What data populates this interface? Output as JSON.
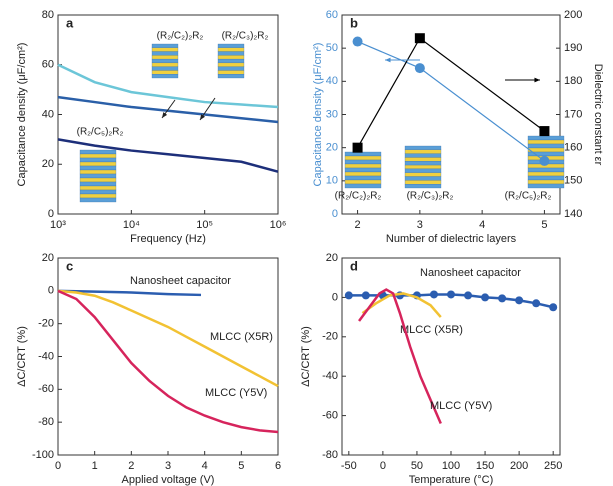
{
  "chart_data": [
    {
      "type": "line",
      "panel_label": "a",
      "xlabel": "Frequency (Hz)",
      "ylabel": "Capacitance density (μF/cm²)",
      "log_x": true,
      "xlim": [
        1000,
        1000000
      ],
      "xticks": [
        {
          "value": 1000,
          "label": "10³"
        },
        {
          "value": 10000,
          "label": "10⁴"
        },
        {
          "value": 100000,
          "label": "10⁵"
        },
        {
          "value": 1000000,
          "label": "10⁶"
        }
      ],
      "ylim": [
        0,
        80
      ],
      "yticks": [
        0,
        20,
        40,
        60,
        80
      ],
      "x": [
        1000,
        3162,
        10000,
        31623,
        100000,
        316228,
        1000000
      ],
      "series": [
        {
          "color": "#6cc6d8",
          "values": [
            60,
            53,
            49,
            47,
            45,
            44,
            43
          ]
        },
        {
          "color": "#2a5fa8",
          "values": [
            47,
            45,
            43,
            41.5,
            40,
            38.5,
            37
          ]
        },
        {
          "color": "#1d2f7a",
          "values": [
            30,
            27.5,
            25.5,
            24,
            22.5,
            21,
            17
          ]
        }
      ],
      "annotations": [
        "(R₂/C₂)₂R₂",
        "(R₂/C₃)₂R₂",
        "(R₂/C₅)₂R₂"
      ]
    },
    {
      "type": "line",
      "panel_label": "b",
      "xlabel": "Number of dielectric layers",
      "ylabel": "Capacitance density (μF/cm²)",
      "y2label": "Dielectric constant εr",
      "xlim": [
        1.75,
        5.25
      ],
      "xticks": [
        2,
        3,
        4,
        5
      ],
      "ylim": [
        0,
        60
      ],
      "yticks": [
        0,
        10,
        20,
        30,
        40,
        50,
        60
      ],
      "y2lim": [
        140,
        200
      ],
      "y2ticks": [
        140,
        150,
        160,
        170,
        180,
        190,
        200
      ],
      "x": [
        2,
        3,
        5
      ],
      "series": [
        {
          "color": "#4a8fd0",
          "marker": "circle",
          "values": [
            52,
            44,
            16
          ]
        },
        {
          "color": "#000000",
          "marker": "square",
          "axis": "y2",
          "values": [
            160,
            193,
            165
          ]
        }
      ],
      "annotations": [
        "(R₂/C₂)₂R₂",
        "(R₂/C₃)₂R₂",
        "(R₂/C₅)₂R₂"
      ]
    },
    {
      "type": "line",
      "panel_label": "c",
      "xlabel": "Applied voltage (V)",
      "ylabel": "ΔC/CRT (%)",
      "xlim": [
        0,
        6
      ],
      "xticks": [
        0,
        1,
        2,
        3,
        4,
        5,
        6
      ],
      "ylim": [
        -100,
        20
      ],
      "yticks": [
        -100,
        -80,
        -60,
        -40,
        -20,
        0,
        20
      ],
      "series": [
        {
          "name": "Nanosheet capacitor",
          "color": "#2b5db0",
          "x": [
            0,
            1,
            2,
            3,
            3.9
          ],
          "values": [
            0,
            -0.5,
            -1,
            -2,
            -2.5
          ]
        },
        {
          "name": "MLCC (X5R)",
          "color": "#f2c233",
          "x": [
            0,
            0.5,
            1,
            1.5,
            2,
            2.5,
            3,
            3.5,
            4,
            4.5,
            5,
            5.5,
            6
          ],
          "values": [
            0,
            -1,
            -3,
            -7,
            -12,
            -17,
            -22,
            -28,
            -34,
            -40,
            -46,
            -52,
            -58
          ]
        },
        {
          "name": "MLCC (Y5V)",
          "color": "#d6245c",
          "x": [
            0,
            0.5,
            1,
            1.5,
            2,
            2.5,
            3,
            3.5,
            4,
            4.5,
            5,
            5.5,
            6
          ],
          "values": [
            0,
            -5,
            -16,
            -30,
            -44,
            -55,
            -64,
            -71,
            -76,
            -80,
            -83,
            -85,
            -86
          ]
        }
      ]
    },
    {
      "type": "line",
      "panel_label": "d",
      "xlabel": "Temperature (°C)",
      "ylabel": "ΔC/CRT (%)",
      "xlim": [
        -60,
        260
      ],
      "xticks": [
        -50,
        0,
        50,
        100,
        150,
        200,
        250
      ],
      "ylim": [
        -80,
        20
      ],
      "yticks": [
        -80,
        -60,
        -40,
        -20,
        0,
        20
      ],
      "series": [
        {
          "name": "Nanosheet capacitor",
          "color": "#2b5db0",
          "marker": "circle",
          "x": [
            -50,
            -25,
            0,
            25,
            50,
            75,
            100,
            125,
            150,
            175,
            200,
            225,
            250
          ],
          "values": [
            1,
            1,
            1,
            1,
            1,
            1.5,
            1.5,
            1,
            0,
            -0.5,
            -1.5,
            -3,
            -5
          ]
        },
        {
          "name": "MLCC (X5R)",
          "color": "#f2c233",
          "x": [
            -30,
            -10,
            10,
            30,
            50,
            70,
            85
          ],
          "values": [
            -8,
            -3,
            1,
            2,
            0,
            -4,
            -10
          ]
        },
        {
          "name": "MLCC (Y5V)",
          "color": "#d6245c",
          "x": [
            -35,
            -20,
            -5,
            5,
            15,
            25,
            40,
            55,
            70,
            85
          ],
          "values": [
            -12,
            -5,
            2,
            4,
            2,
            -8,
            -25,
            -40,
            -52,
            -64
          ]
        }
      ]
    }
  ]
}
